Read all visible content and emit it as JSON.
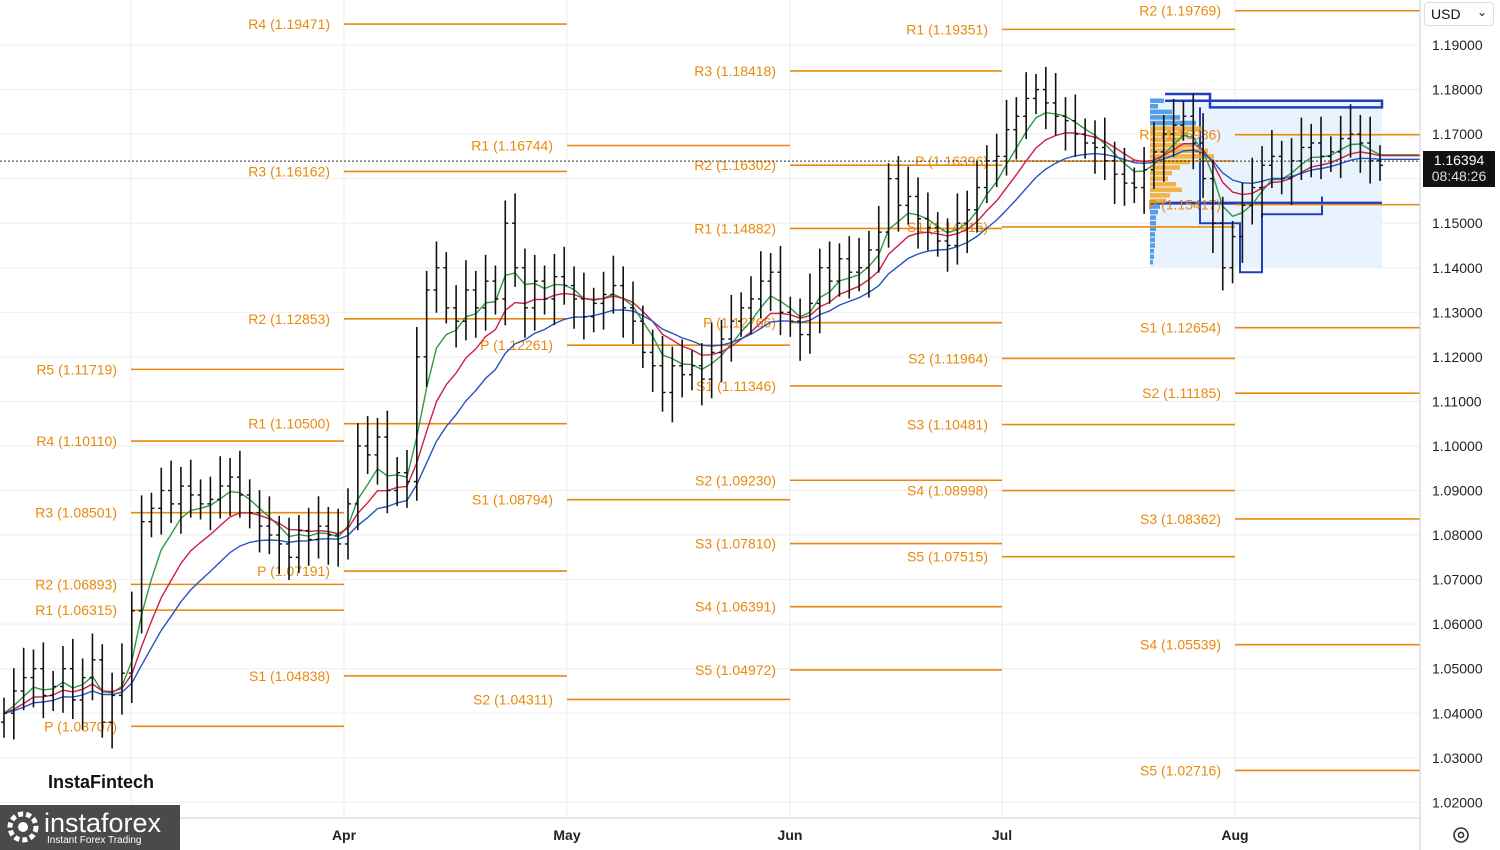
{
  "chart_data": {
    "type": "ohlc",
    "symbol_currency": "USD",
    "current_price": "1.16394",
    "countdown": "08:48:26",
    "y_ticks": [
      "1.19000",
      "1.18000",
      "1.17000",
      "1.16000",
      "1.15000",
      "1.14000",
      "1.13000",
      "1.12000",
      "1.11000",
      "1.10000",
      "1.09000",
      "1.08000",
      "1.07000",
      "1.06000",
      "1.05000",
      "1.04000",
      "1.03000",
      "1.02000"
    ],
    "x_ticks": [
      "Apr",
      "May",
      "Jun",
      "Jul",
      "Aug"
    ],
    "pivot_levels": [
      {
        "label": "R4 (1.19471)",
        "value": 1.19471,
        "period": "Apr"
      },
      {
        "label": "R3 (1.16162)",
        "value": 1.16162,
        "period": "Apr"
      },
      {
        "label": "R2 (1.12853)",
        "value": 1.12853,
        "period": "Apr"
      },
      {
        "label": "R1 (1.10500)",
        "value": 1.105,
        "period": "Apr"
      },
      {
        "label": "P (1.07191)",
        "value": 1.07191,
        "period": "Apr"
      },
      {
        "label": "S1 (1.04838)",
        "value": 1.04838,
        "period": "Apr"
      },
      {
        "label": "R5 (1.11719)",
        "value": 1.11719,
        "period": "Mar"
      },
      {
        "label": "R4 (1.10110)",
        "value": 1.1011,
        "period": "Mar"
      },
      {
        "label": "R3 (1.08501)",
        "value": 1.08501,
        "period": "Mar"
      },
      {
        "label": "R2 (1.06893)",
        "value": 1.06893,
        "period": "Mar"
      },
      {
        "label": "R1 (1.06315)",
        "value": 1.06315,
        "period": "Mar"
      },
      {
        "label": "P (1.03707)",
        "value": 1.03707,
        "period": "Mar"
      },
      {
        "label": "R1 (1.16744)",
        "value": 1.16744,
        "period": "May"
      },
      {
        "label": "P (1.12261)",
        "value": 1.12261,
        "period": "May"
      },
      {
        "label": "S1 (1.08794)",
        "value": 1.08794,
        "period": "May"
      },
      {
        "label": "S2 (1.04311)",
        "value": 1.04311,
        "period": "May"
      },
      {
        "label": "R3 (1.18418)",
        "value": 1.18418,
        "period": "Jun"
      },
      {
        "label": "R2 (1.16302)",
        "value": 1.16302,
        "period": "Jun"
      },
      {
        "label": "R1 (1.14882)",
        "value": 1.14882,
        "period": "Jun"
      },
      {
        "label": "P (1.12766)",
        "value": 1.12766,
        "period": "Jun"
      },
      {
        "label": "S1 (1.11346)",
        "value": 1.11346,
        "period": "Jun"
      },
      {
        "label": "S2 (1.09230)",
        "value": 1.0923,
        "period": "Jun"
      },
      {
        "label": "S3 (1.07810)",
        "value": 1.0781,
        "period": "Jun"
      },
      {
        "label": "S4 (1.06391)",
        "value": 1.06391,
        "period": "Jun"
      },
      {
        "label": "S5 (1.04972)",
        "value": 1.04972,
        "period": "Jun"
      },
      {
        "label": "R1 (1.19351)",
        "value": 1.19351,
        "period": "Jul"
      },
      {
        "label": "P (1.16396)",
        "value": 1.16396,
        "period": "Jul"
      },
      {
        "label": "S1 (1.14916)",
        "value": 1.14916,
        "period": "Jul"
      },
      {
        "label": "S2 (1.11964)",
        "value": 1.11964,
        "period": "Jul"
      },
      {
        "label": "S3 (1.10481)",
        "value": 1.10481,
        "period": "Jul"
      },
      {
        "label": "S4 (1.08998)",
        "value": 1.08998,
        "period": "Jul"
      },
      {
        "label": "S5 (1.07515)",
        "value": 1.07515,
        "period": "Jul"
      },
      {
        "label": "R2 (1.19769)",
        "value": 1.19769,
        "period": "Aug"
      },
      {
        "label": "R1 (1.16986)",
        "value": 1.16986,
        "period": "Aug"
      },
      {
        "label": "P (1.15417)",
        "value": 1.15417,
        "period": "Aug"
      },
      {
        "label": "S1 (1.12654)",
        "value": 1.12654,
        "period": "Aug"
      },
      {
        "label": "S2 (1.11185)",
        "value": 1.11185,
        "period": "Aug"
      },
      {
        "label": "S3 (1.08362)",
        "value": 1.08362,
        "period": "Aug"
      },
      {
        "label": "S4 (1.05539)",
        "value": 1.05539,
        "period": "Aug"
      },
      {
        "label": "S5 (1.02716)",
        "value": 1.02716,
        "period": "Aug"
      }
    ],
    "close_path": [
      1.04,
      1.045,
      1.048,
      1.05,
      1.044,
      1.046,
      1.05,
      1.043,
      1.048,
      1.052,
      1.038,
      1.044,
      1.049,
      1.063,
      1.083,
      1.086,
      1.09,
      1.087,
      1.091,
      1.089,
      1.087,
      1.088,
      1.091,
      1.093,
      1.089,
      1.085,
      1.082,
      1.08,
      1.078,
      1.075,
      1.081,
      1.079,
      1.082,
      1.08,
      1.078,
      1.087,
      1.1,
      1.098,
      1.102,
      1.09,
      1.094,
      1.092,
      1.12,
      1.135,
      1.14,
      1.131,
      1.128,
      1.135,
      1.131,
      1.137,
      1.133,
      1.15,
      1.14,
      1.131,
      1.137,
      1.133,
      1.138,
      1.136,
      1.133,
      1.129,
      1.132,
      1.134,
      1.136,
      1.131,
      1.128,
      1.121,
      1.118,
      1.112,
      1.118,
      1.116,
      1.118,
      1.115,
      1.121,
      1.124,
      1.128,
      1.131,
      1.133,
      1.137,
      1.139,
      1.13,
      1.128,
      1.125,
      1.132,
      1.14,
      1.137,
      1.142,
      1.139,
      1.14,
      1.144,
      1.148,
      1.16,
      1.154,
      1.156,
      1.151,
      1.149,
      1.146,
      1.145,
      1.15,
      1.153,
      1.158,
      1.164,
      1.165,
      1.171,
      1.174,
      1.178,
      1.18,
      1.177,
      1.174,
      1.173,
      1.17,
      1.168,
      1.167,
      1.164,
      1.161,
      1.159,
      1.158,
      1.162,
      1.166,
      1.17,
      1.172,
      1.174,
      1.168,
      1.16,
      1.15,
      1.14,
      1.147,
      1.154,
      1.158,
      1.163,
      1.165,
      1.16,
      1.164,
      1.167,
      1.168,
      1.165,
      1.166,
      1.169,
      1.17,
      1.168,
      1.164,
      1.163
    ],
    "series": [
      {
        "name": "",
        "color": "#2f9a44"
      },
      {
        "name": "",
        "color": "#cf1f47"
      },
      {
        "name": "",
        "color": "#2753c0"
      }
    ]
  }
}
